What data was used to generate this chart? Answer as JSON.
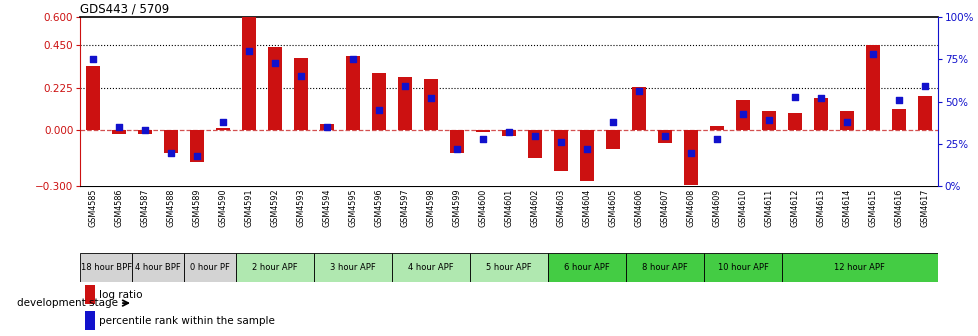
{
  "title": "GDS443 / 5709",
  "samples": [
    "GSM4585",
    "GSM4586",
    "GSM4587",
    "GSM4588",
    "GSM4589",
    "GSM4590",
    "GSM4591",
    "GSM4592",
    "GSM4593",
    "GSM4594",
    "GSM4595",
    "GSM4596",
    "GSM4597",
    "GSM4598",
    "GSM4599",
    "GSM4600",
    "GSM4601",
    "GSM4602",
    "GSM4603",
    "GSM4604",
    "GSM4605",
    "GSM4606",
    "GSM4607",
    "GSM4608",
    "GSM4609",
    "GSM4610",
    "GSM4611",
    "GSM4612",
    "GSM4613",
    "GSM4614",
    "GSM4615",
    "GSM4616",
    "GSM4617"
  ],
  "log_ratio": [
    0.34,
    -0.02,
    -0.02,
    -0.12,
    -0.17,
    0.01,
    0.6,
    0.44,
    0.38,
    0.03,
    0.39,
    0.3,
    0.28,
    0.27,
    -0.12,
    -0.01,
    -0.03,
    -0.15,
    -0.22,
    -0.27,
    -0.1,
    0.23,
    -0.07,
    -0.29,
    0.02,
    0.16,
    0.1,
    0.09,
    0.17,
    0.1,
    0.45,
    0.11,
    0.18
  ],
  "percentile": [
    75,
    35,
    33,
    20,
    18,
    38,
    80,
    73,
    65,
    35,
    75,
    45,
    59,
    52,
    22,
    28,
    32,
    30,
    26,
    22,
    38,
    56,
    30,
    20,
    28,
    43,
    39,
    53,
    52,
    38,
    78,
    51,
    59
  ],
  "stages": [
    {
      "label": "18 hour BPF",
      "start": 0,
      "end": 2,
      "color": "#d3d3d3"
    },
    {
      "label": "4 hour BPF",
      "start": 2,
      "end": 4,
      "color": "#d3d3d3"
    },
    {
      "label": "0 hour PF",
      "start": 4,
      "end": 6,
      "color": "#d3d3d3"
    },
    {
      "label": "2 hour APF",
      "start": 6,
      "end": 9,
      "color": "#b0e8b0"
    },
    {
      "label": "3 hour APF",
      "start": 9,
      "end": 12,
      "color": "#b0e8b0"
    },
    {
      "label": "4 hour APF",
      "start": 12,
      "end": 15,
      "color": "#b0e8b0"
    },
    {
      "label": "5 hour APF",
      "start": 15,
      "end": 18,
      "color": "#b0e8b0"
    },
    {
      "label": "6 hour APF",
      "start": 18,
      "end": 21,
      "color": "#44cc44"
    },
    {
      "label": "8 hour APF",
      "start": 21,
      "end": 24,
      "color": "#44cc44"
    },
    {
      "label": "10 hour APF",
      "start": 24,
      "end": 27,
      "color": "#44cc44"
    },
    {
      "label": "12 hour APF",
      "start": 27,
      "end": 33,
      "color": "#44cc44"
    }
  ],
  "ylim_left": [
    -0.3,
    0.6
  ],
  "ylim_right": [
    0,
    100
  ],
  "yticks_left": [
    -0.3,
    0.0,
    0.225,
    0.45,
    0.6
  ],
  "yticks_right": [
    0,
    25,
    50,
    75,
    100
  ],
  "bar_color": "#cc1111",
  "dot_color": "#1111cc",
  "hline_dotted": [
    0.225,
    0.45
  ],
  "zero_line_color": "#cc3333"
}
